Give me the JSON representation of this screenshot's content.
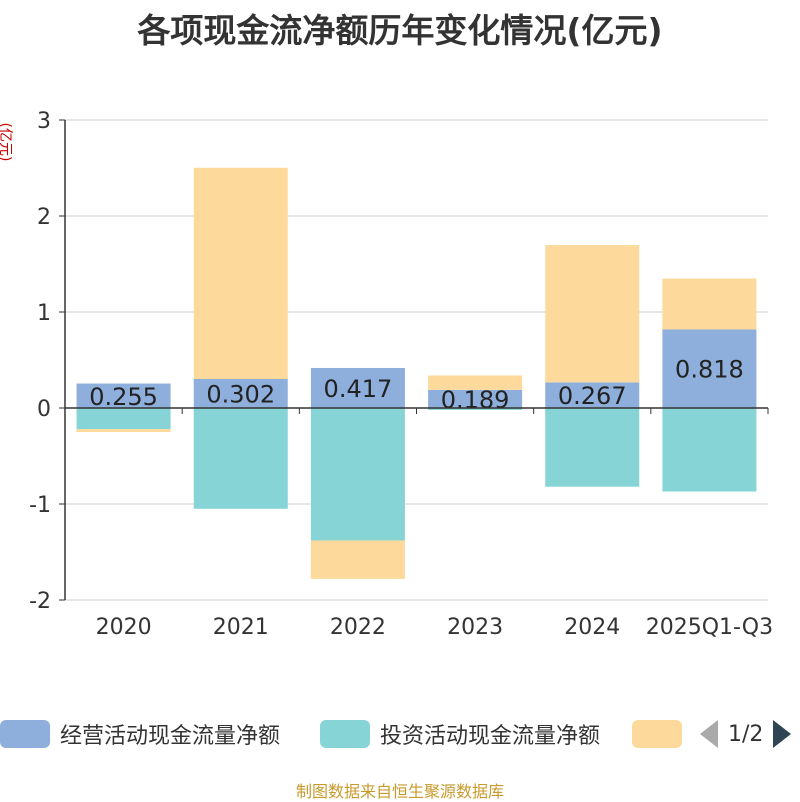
{
  "chart_data": {
    "type": "bar",
    "stacked": true,
    "title": "各项现金流净额历年变化情况(亿元)",
    "ylabel": "(亿元)",
    "ylim": [
      -2,
      3
    ],
    "yticks": [
      -2,
      -1,
      0,
      1,
      2,
      3
    ],
    "categories": [
      "2020",
      "2021",
      "2022",
      "2023",
      "2024",
      "2025Q1-Q3"
    ],
    "series": [
      {
        "name": "经营活动现金流量净额",
        "color": "#8eaedb",
        "values": [
          0.255,
          0.302,
          0.417,
          0.189,
          0.267,
          0.818
        ],
        "labels": [
          "0.255",
          "0.302",
          "0.417",
          "0.189",
          "0.267",
          "0.818"
        ]
      },
      {
        "name": "投资活动现金流量净额",
        "color": "#87d4d7",
        "values": [
          -0.22,
          -1.05,
          -1.38,
          -0.02,
          -0.82,
          -0.87
        ]
      },
      {
        "name": "",
        "color": "#fdd99b",
        "values": [
          -0.03,
          2.2,
          -0.4,
          0.15,
          1.43,
          0.53
        ]
      }
    ],
    "legend_position": "bottom",
    "grid": true
  },
  "legend": {
    "items": [
      {
        "label": "经营活动现金流量净额",
        "color": "#8eaedb"
      },
      {
        "label": "投资活动现金流量净额",
        "color": "#87d4d7"
      },
      {
        "label": "",
        "color": "#fdd99b"
      }
    ],
    "page_indicator": "1/2"
  },
  "source": "制图数据来自恒生聚源数据库"
}
